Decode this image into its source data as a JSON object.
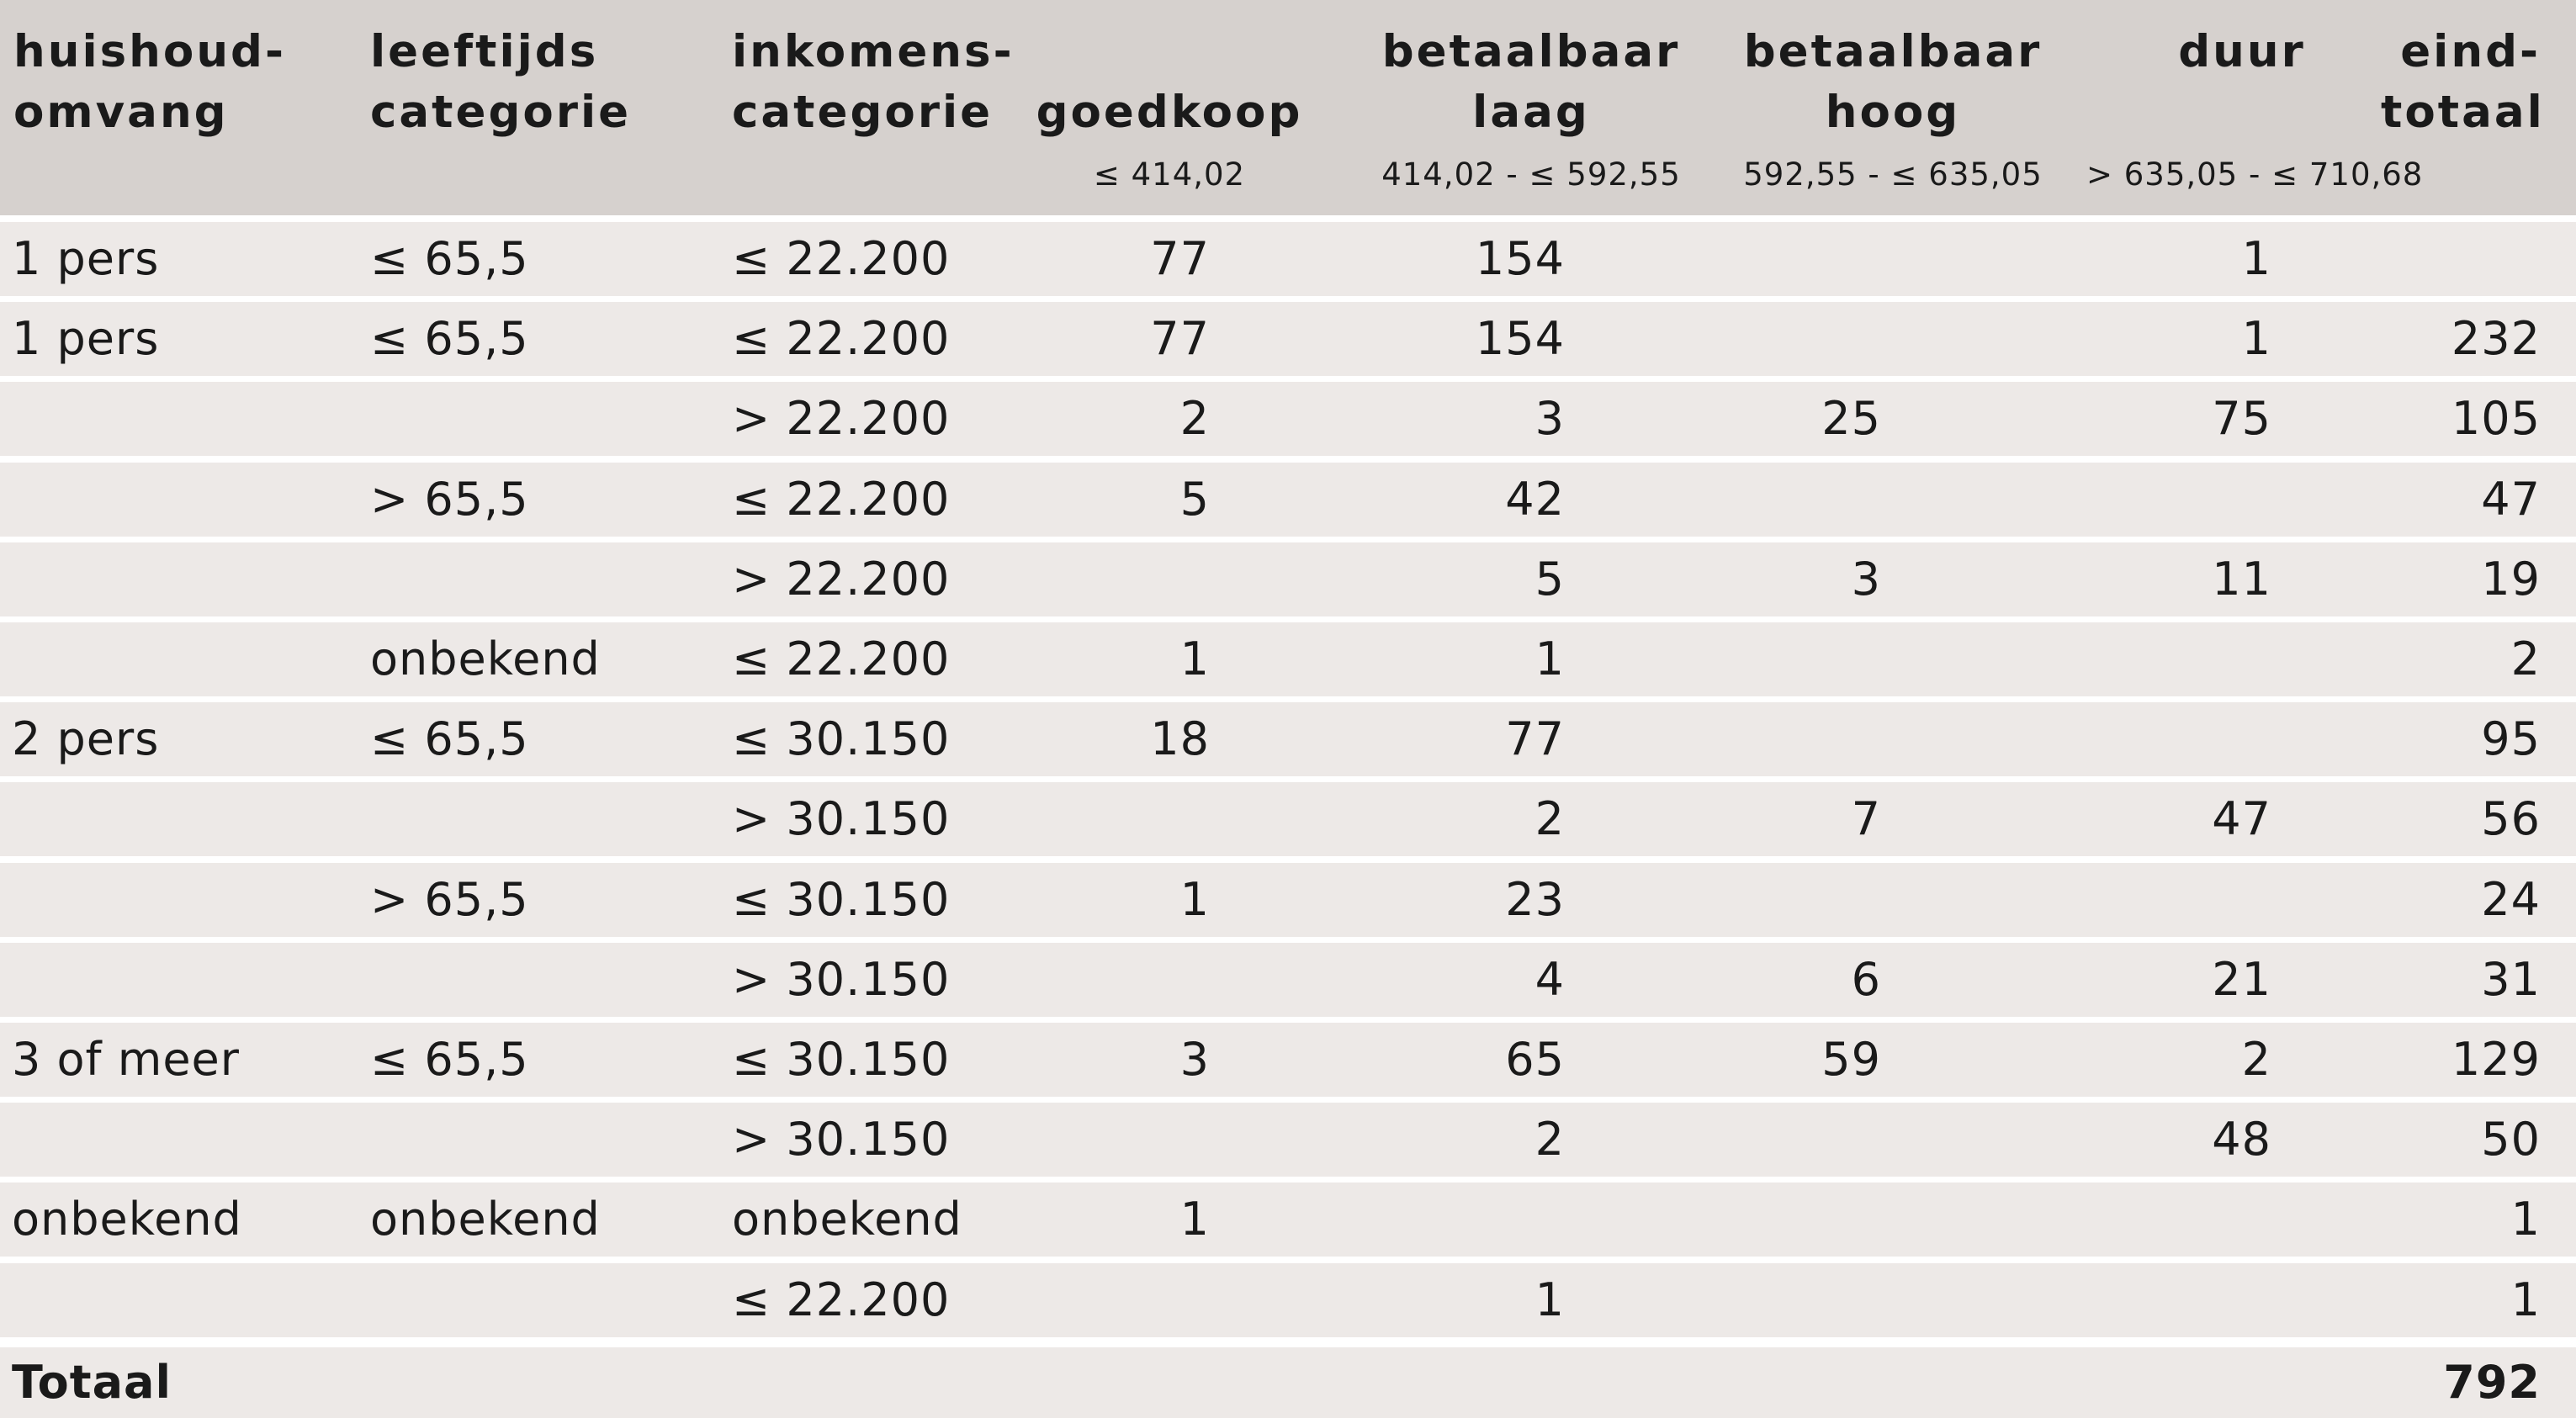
{
  "header": {
    "col1": [
      "huishoud-",
      "omvang"
    ],
    "col2": [
      "leeftijds",
      "categorie"
    ],
    "col3": [
      "inkomens-",
      "categorie"
    ],
    "col4": {
      "label": "goedkoop",
      "sub": "≤ 414,02"
    },
    "col5": {
      "label": [
        "betaalbaar",
        "laag"
      ],
      "sub": "414,02 - ≤ 592,55"
    },
    "col6": {
      "label": [
        "betaalbaar",
        "hoog"
      ],
      "sub": "592,55 - ≤ 635,05"
    },
    "col7": {
      "label": "duur",
      "sub": "> 635,05 - ≤ 710,68"
    },
    "col8": [
      "eind-",
      "totaal"
    ]
  },
  "rows": [
    [
      "1 pers",
      "≤ 65,5",
      "≤ 22.200",
      "77",
      "154",
      "",
      "1",
      ""
    ],
    [
      "1 pers",
      "≤ 65,5",
      "≤ 22.200",
      "77",
      "154",
      "",
      "1",
      "232"
    ],
    [
      "",
      "",
      "> 22.200",
      "2",
      "3",
      "25",
      "75",
      "105"
    ],
    [
      "",
      "> 65,5",
      "≤ 22.200",
      "5",
      "42",
      "",
      "",
      "47"
    ],
    [
      "",
      "",
      "> 22.200",
      "",
      "5",
      "3",
      "11",
      "19"
    ],
    [
      "",
      "onbekend",
      "≤ 22.200",
      "1",
      "1",
      "",
      "",
      "2"
    ],
    [
      "2 pers",
      "≤ 65,5",
      "≤ 30.150",
      "18",
      "77",
      "",
      "",
      "95"
    ],
    [
      "",
      "",
      "> 30.150",
      "",
      "2",
      "7",
      "47",
      "56"
    ],
    [
      "",
      "> 65,5",
      "≤ 30.150",
      "1",
      "23",
      "",
      "",
      "24"
    ],
    [
      "",
      "",
      "> 30.150",
      "",
      "4",
      "6",
      "21",
      "31"
    ],
    [
      "3 of meer",
      "≤ 65,5",
      "≤ 30.150",
      "3",
      "65",
      "59",
      "2",
      "129"
    ],
    [
      "",
      "",
      "> 30.150",
      "",
      "2",
      "",
      "48",
      "50"
    ],
    [
      "onbekend",
      "onbekend",
      "onbekend",
      "1",
      "",
      "",
      "",
      "1"
    ],
    [
      "",
      "",
      "≤ 22.200",
      "",
      "1",
      "",
      "",
      "1"
    ]
  ],
  "total": {
    "label": "Totaal",
    "value": "792"
  },
  "colors": {
    "header_bg": "#d6d1ce",
    "row_bg": "#ede9e7",
    "separator": "#ffffff",
    "text": "#1a1a1a"
  }
}
